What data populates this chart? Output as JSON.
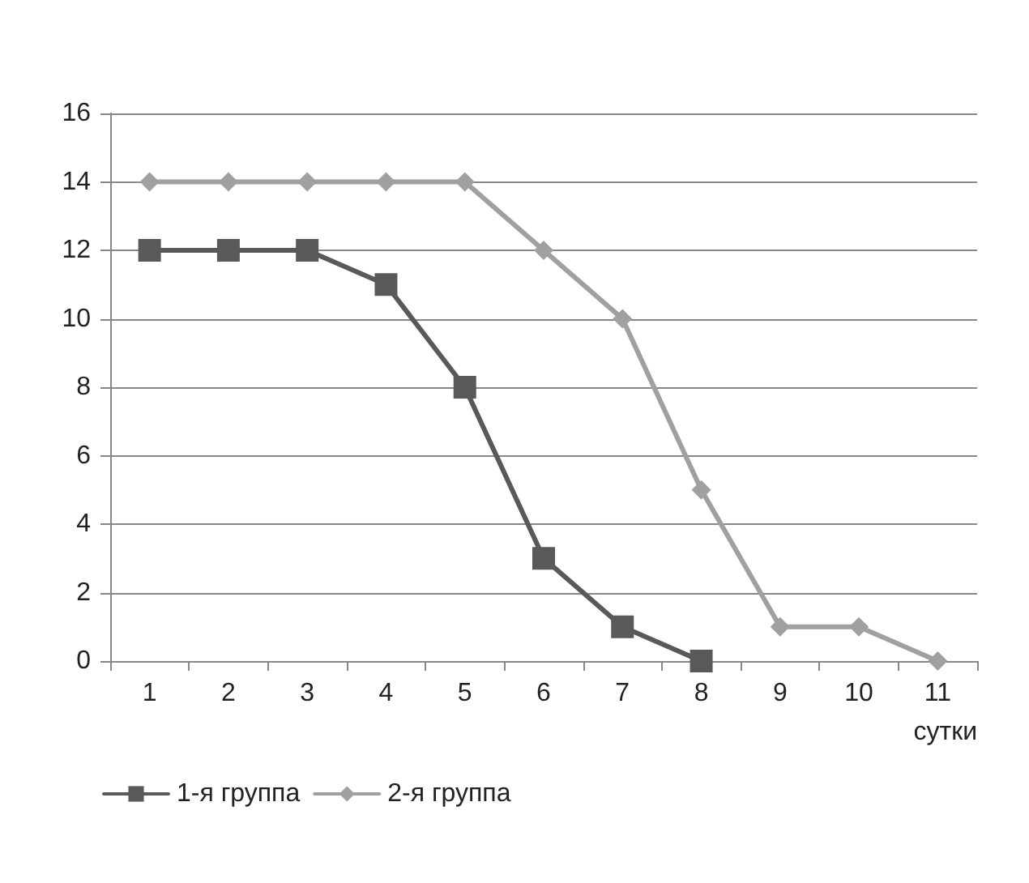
{
  "chart_data": {
    "type": "line",
    "xlabel": "сутки",
    "categories": [
      "1",
      "2",
      "3",
      "4",
      "5",
      "6",
      "7",
      "8",
      "9",
      "10",
      "11"
    ],
    "series": [
      {
        "name": "1-я группа",
        "color": "#595959",
        "marker": "square",
        "values": [
          12,
          12,
          12,
          11,
          8,
          3,
          1,
          0,
          null,
          null,
          null
        ]
      },
      {
        "name": "2-я группа",
        "color": "#a0a0a0",
        "marker": "diamond",
        "values": [
          14,
          14,
          14,
          14,
          14,
          12,
          10,
          5,
          1,
          1,
          0
        ]
      }
    ],
    "ylim": [
      0,
      16
    ],
    "yticks": [
      0,
      2,
      4,
      6,
      8,
      10,
      12,
      14,
      16
    ],
    "grid": "y",
    "legend": "bottom left",
    "line_style": "solid"
  }
}
